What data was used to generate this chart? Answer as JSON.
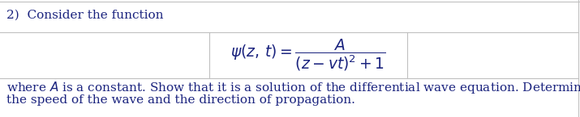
{
  "title_text": "2)  Consider the function",
  "formula": "$\\psi(z,\\, t) = \\dfrac{A}{(z - vt)^2 + 1}$",
  "body_text_line1": "where $A$ is a constant. Show that it is a solution of the differential wave equation. Determine",
  "body_text_line2": "the speed of the wave and the direction of propagation.",
  "bg_color": "#ffffff",
  "border_color": "#c0c0c0",
  "text_color": "#1a237e",
  "title_fontsize": 11.0,
  "formula_fontsize": 13.5,
  "body_fontsize": 11.0,
  "fig_width": 7.15,
  "fig_height": 1.45,
  "dpi": 100
}
